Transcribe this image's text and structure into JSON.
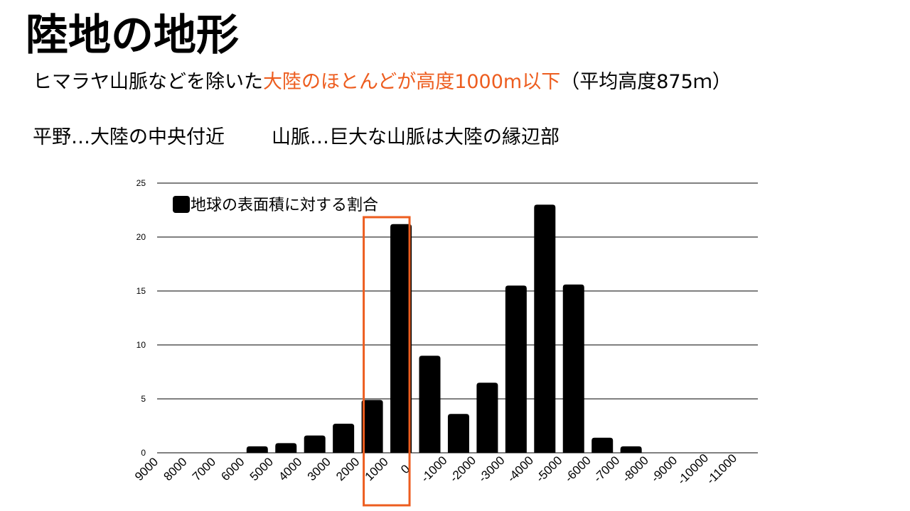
{
  "slide": {
    "title": "陸地の地形",
    "line1_before": "ヒマラヤ山脈などを除いた",
    "line1_highlight": "大陸のほとんどが高度1000m以下",
    "line1_after": "（平均高度875ｍ）",
    "line2_left": "平野…大陸の中央付近",
    "line2_right": "山脈…巨大な山脈は大陸の縁辺部",
    "highlight_color": "#ed5d1f"
  },
  "chart_data": {
    "type": "bar",
    "categories": [
      "9000",
      "8000",
      "7000",
      "6000",
      "5000",
      "4000",
      "3000",
      "2000",
      "1000",
      "0",
      "-1000",
      "-2000",
      "-3000",
      "-4000",
      "-5000",
      "-6000",
      "-7000",
      "-8000",
      "-9000",
      "-10000",
      "-11000"
    ],
    "series": [
      {
        "name": "地球の表面積に対する割合",
        "values": [
          0,
          0,
          0,
          0,
          0.6,
          0.9,
          1.6,
          2.7,
          4.9,
          21.2,
          9.0,
          3.6,
          6.5,
          15.5,
          23.0,
          15.6,
          1.4,
          0.6,
          0,
          0,
          0
        ],
        "color": "#000000"
      }
    ],
    "y_ticks": [
      "0",
      "5",
      "10",
      "15",
      "20",
      "25"
    ],
    "ylim": [
      0,
      25
    ],
    "grid": true,
    "legend_position": "top-left",
    "highlight_range": [
      "1000",
      "0"
    ],
    "highlight_color": "#ed5d1f"
  }
}
